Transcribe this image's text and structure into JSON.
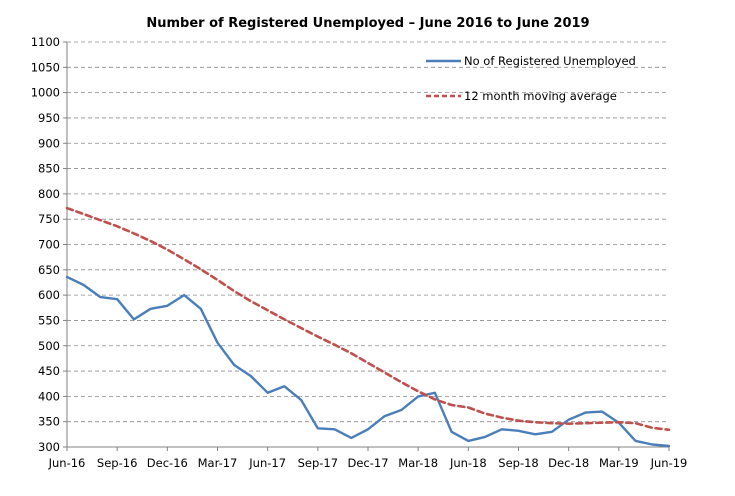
{
  "chart_data": {
    "type": "line",
    "title": "Number of Registered Unemployed – June 2016 to June 2019",
    "xlabel": "",
    "ylabel": "",
    "ylim": [
      300,
      1100
    ],
    "yticks": [
      300,
      350,
      400,
      450,
      500,
      550,
      600,
      650,
      700,
      750,
      800,
      850,
      900,
      950,
      1000,
      1050,
      1100
    ],
    "grid": true,
    "legend_position": "top-right",
    "x_tick_labels": [
      "Jun-16",
      "Sep-16",
      "Dec-16",
      "Mar-17",
      "Jun-17",
      "Sep-17",
      "Dec-17",
      "Mar-18",
      "Jun-18",
      "Sep-18",
      "Dec-18",
      "Mar-19",
      "Jun-19"
    ],
    "x": [
      "Jun-16",
      "Jul-16",
      "Aug-16",
      "Sep-16",
      "Oct-16",
      "Nov-16",
      "Dec-16",
      "Jan-17",
      "Feb-17",
      "Mar-17",
      "Apr-17",
      "May-17",
      "Jun-17",
      "Jul-17",
      "Aug-17",
      "Sep-17",
      "Oct-17",
      "Nov-17",
      "Dec-17",
      "Jan-18",
      "Feb-18",
      "Mar-18",
      "Apr-18",
      "May-18",
      "Jun-18",
      "Jul-18",
      "Aug-18",
      "Sep-18",
      "Oct-18",
      "Nov-18",
      "Dec-18",
      "Jan-19",
      "Feb-19",
      "Mar-19",
      "Apr-19",
      "May-19",
      "Jun-19"
    ],
    "series": [
      {
        "name": "No of Registered Unemployed",
        "color": "#4a7ebb",
        "style": "solid",
        "values": [
          636,
          620,
          596,
          592,
          552,
          573,
          579,
          600,
          573,
          506,
          462,
          440,
          407,
          420,
          393,
          337,
          335,
          318,
          335,
          361,
          373,
          400,
          407,
          330,
          312,
          320,
          335,
          332,
          325,
          330,
          354,
          368,
          370,
          348,
          312,
          305,
          302
        ]
      },
      {
        "name": "12 month moving average",
        "color": "#c0504d",
        "style": "dashed",
        "values": [
          772,
          760,
          748,
          736,
          722,
          707,
          690,
          671,
          651,
          630,
          608,
          588,
          570,
          552,
          535,
          518,
          502,
          485,
          466,
          447,
          428,
          410,
          394,
          383,
          378,
          366,
          358,
          352,
          349,
          347,
          346,
          347,
          348,
          349,
          347,
          338,
          334
        ]
      }
    ]
  }
}
